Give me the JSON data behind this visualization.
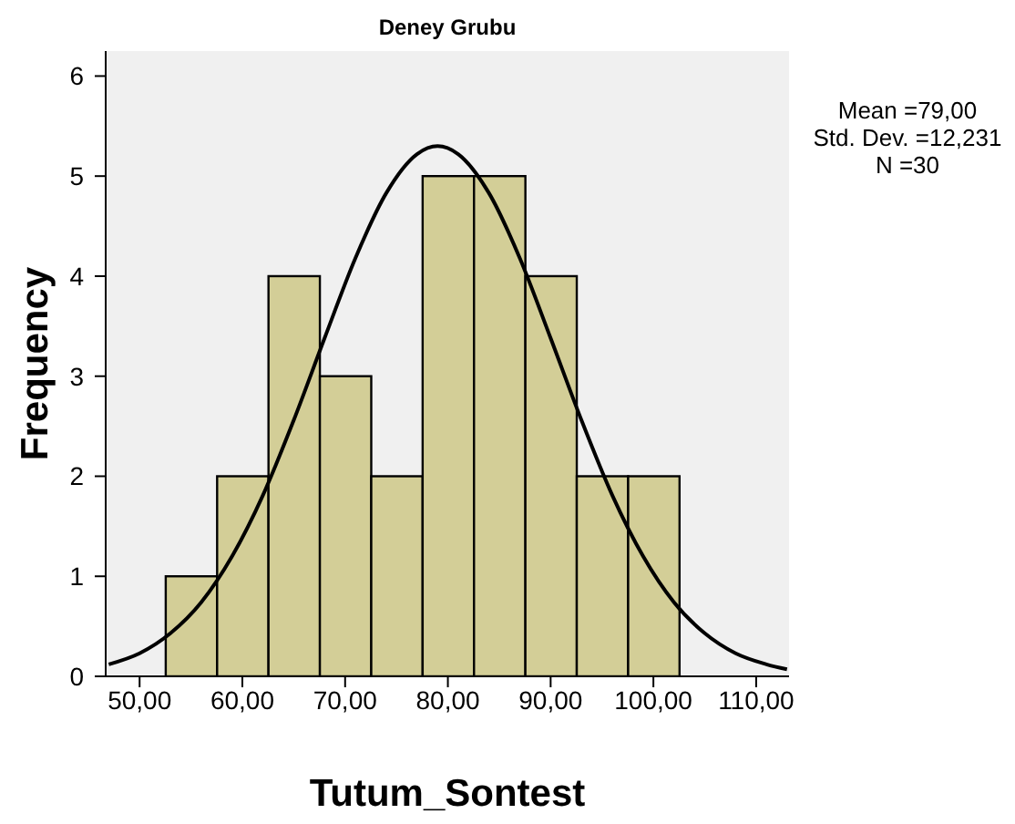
{
  "chart_data": {
    "type": "histogram",
    "title": "Deney Grubu",
    "xlabel": "Tutum_Sontest",
    "ylabel": "Frequency",
    "bins": [
      52.5,
      57.5,
      62.5,
      67.5,
      72.5,
      77.5,
      82.5,
      87.5,
      92.5,
      97.5,
      102.5
    ],
    "values": [
      1,
      2,
      4,
      3,
      2,
      5,
      5,
      4,
      2,
      2
    ],
    "color": "#d3ce97",
    "series": [
      {
        "type": "line",
        "color": "#000000",
        "x": [
          47,
          50,
          53,
          56,
          59,
          62,
          65,
          68,
          71,
          74,
          77,
          79,
          81,
          84,
          87,
          90,
          93,
          96,
          99,
          102,
          105,
          108,
          111,
          113
        ],
        "values": [
          0.12,
          0.23,
          0.43,
          0.74,
          1.2,
          1.81,
          2.56,
          3.38,
          4.18,
          4.83,
          5.22,
          5.3,
          5.22,
          4.83,
          4.18,
          3.38,
          2.56,
          1.81,
          1.2,
          0.74,
          0.43,
          0.23,
          0.12,
          0.07
        ]
      }
    ],
    "xlim": [
      46.7,
      113.2
    ],
    "xticks": [
      {
        "value": 50,
        "label": "50,00"
      },
      {
        "value": 60,
        "label": "60,00"
      },
      {
        "value": 70,
        "label": "70,00"
      },
      {
        "value": 80,
        "label": "80,00"
      },
      {
        "value": 90,
        "label": "90,00"
      },
      {
        "value": 100,
        "label": "100,00"
      },
      {
        "value": 110,
        "label": "110,00"
      }
    ],
    "ylim": [
      0,
      6.25
    ],
    "yticks": [
      0,
      1,
      2,
      3,
      4,
      5,
      6
    ],
    "annotations": [
      "Mean =79,00",
      "Std. Dev. =12,231",
      "N =30"
    ]
  }
}
